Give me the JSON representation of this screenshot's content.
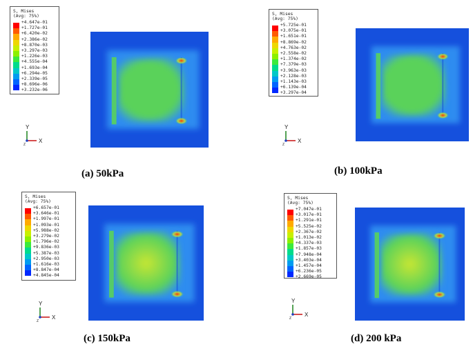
{
  "legend_colors": [
    "#ff0000",
    "#ff5a00",
    "#ffaa00",
    "#eed800",
    "#c8f000",
    "#8cf000",
    "#3cea3c",
    "#00dc8c",
    "#00c8c8",
    "#009cf0",
    "#0064ff",
    "#0028ff"
  ],
  "fem_colors": {
    "background": "#1550dd",
    "mid": "#2e8cf0",
    "green": "#5ad25a",
    "yellow": "#c8e632",
    "hot": "#ff3a00"
  },
  "panels": [
    {
      "name": "50kpa",
      "legend": {
        "title": "S, Mises",
        "avg": "(Avg: 75%)",
        "values": [
          "+4.647e-01",
          "+1.727e-01",
          "+6.420e-02",
          "+2.386e-02",
          "+8.870e-03",
          "+3.297e-03",
          "+1.226e-03",
          "+4.555e-04",
          "+1.693e-04",
          "+6.294e-05",
          "+2.339e-05",
          "+8.696e-06",
          "+3.232e-06"
        ]
      },
      "triad": {
        "y": "Y",
        "x": "X",
        "z": "Z"
      },
      "caption": "(a) 50kPa",
      "intensity": 0.55
    },
    {
      "name": "100kpa",
      "legend": {
        "title": "S, Mises",
        "avg": "(Avg: 75%)",
        "values": [
          "+5.725e-01",
          "+3.075e-01",
          "+1.651e-01",
          "+8.869e-02",
          "+4.763e-02",
          "+2.558e-02",
          "+1.374e-02",
          "+7.379e-03",
          "+3.963e-03",
          "+2.128e-03",
          "+1.143e-03",
          "+6.139e-04",
          "+3.297e-04"
        ]
      },
      "triad": {
        "y": "Y",
        "x": "X",
        "z": "Z"
      },
      "caption": "(b) 100kPa",
      "intensity": 0.6
    },
    {
      "name": "150kpa",
      "legend": {
        "title": "S, Mises",
        "avg": "(Avg: 75%)",
        "values": [
          "+6.657e-01",
          "+3.646e-01",
          "+1.997e-01",
          "+1.093e-01",
          "+5.988e-02",
          "+3.279e-02",
          "+1.796e-02",
          "+9.836e-03",
          "+5.387e-03",
          "+2.950e-03",
          "+1.616e-03",
          "+8.847e-04",
          "+4.845e-04"
        ]
      },
      "triad": {
        "y": "Y",
        "x": "X",
        "z": "Z"
      },
      "caption": "(c) 150kPa",
      "intensity": 0.75
    },
    {
      "name": "200kpa",
      "legend": {
        "title": "S, Mises",
        "avg": "(Avg: 75%)",
        "values": [
          "+7.047e-01",
          "+3.017e-01",
          "+1.291e-01",
          "+5.525e-02",
          "+2.367e-02",
          "+1.013e-02",
          "+4.337e-03",
          "+1.857e-03",
          "+7.948e-04",
          "+3.403e-04",
          "+1.457e-04",
          "+6.236e-05",
          "+2.669e-05"
        ]
      },
      "triad": {
        "y": "Y",
        "x": "X",
        "z": "Z"
      },
      "caption": "(d) 200 kPa",
      "intensity": 0.9
    }
  ]
}
